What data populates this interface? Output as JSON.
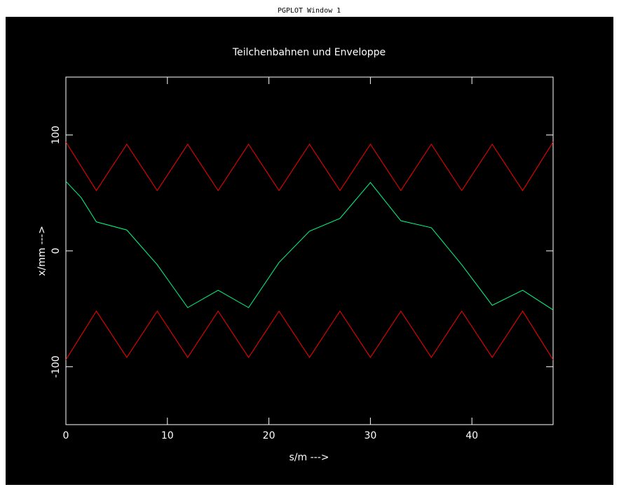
{
  "window_title": "PGPLOT Window 1",
  "chart_data": {
    "type": "line",
    "title": "Teilchenbahnen und Enveloppe",
    "x_label": "s/m  --->",
    "y_label": "x/mm  --->",
    "xlim": [
      0,
      48
    ],
    "ylim": [
      -150,
      150
    ],
    "xticks": [
      0,
      10,
      20,
      30,
      40
    ],
    "yticks": [
      -100,
      0,
      100
    ],
    "series": [
      {
        "color": "#ff0000",
        "x": [
          0,
          3,
          6,
          9,
          12,
          15,
          18,
          21,
          24,
          27,
          30,
          33,
          36,
          39,
          42,
          45,
          48
        ],
        "values": [
          94,
          52,
          92,
          52,
          92,
          52,
          92,
          52,
          92,
          52,
          92,
          52,
          92,
          52,
          92,
          52,
          94
        ]
      },
      {
        "color": "#ff0000",
        "x": [
          0,
          3,
          6,
          9,
          12,
          15,
          18,
          21,
          24,
          27,
          30,
          33,
          36,
          39,
          42,
          45,
          48
        ],
        "values": [
          -94,
          -52,
          -92,
          -52,
          -92,
          -52,
          -92,
          -52,
          -92,
          -52,
          -92,
          -52,
          -92,
          -52,
          -92,
          -52,
          -94
        ]
      },
      {
        "color": "#00ff80",
        "x": [
          0,
          1.5,
          3,
          6,
          9,
          12,
          15,
          18,
          21,
          24,
          27,
          30,
          33,
          36,
          39,
          42,
          45,
          48
        ],
        "values": [
          60,
          46,
          25,
          18,
          -12,
          -49,
          -34,
          -49,
          -10,
          17,
          28,
          59,
          26,
          20,
          -12,
          -47,
          -34,
          -51
        ]
      }
    ]
  }
}
